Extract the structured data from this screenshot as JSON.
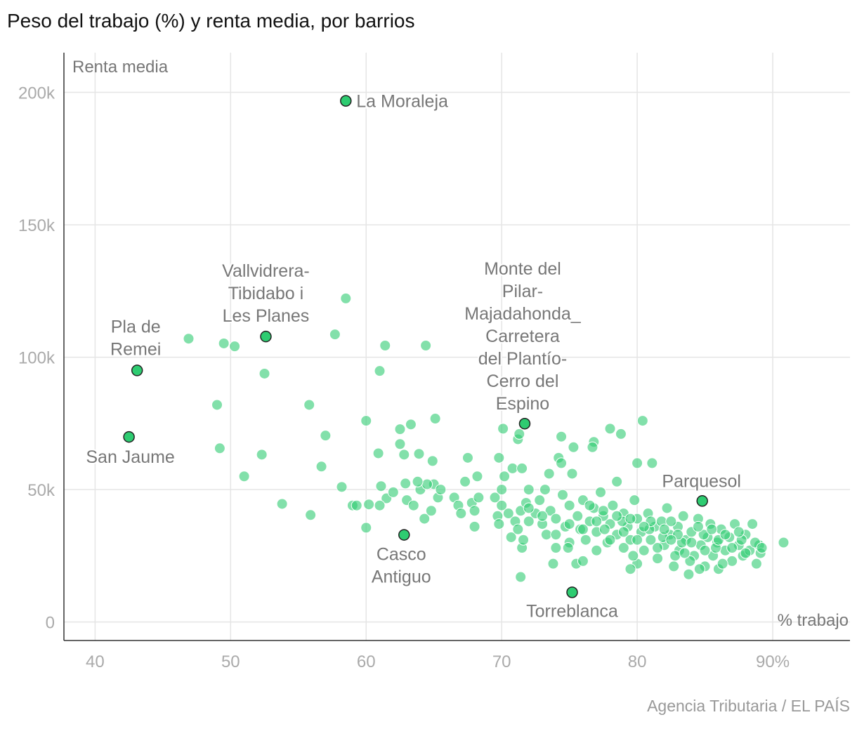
{
  "title": "Peso del trabajo (%) y renta media, por barrios",
  "source": "Agencia Tributaria / EL PAÍS",
  "colors": {
    "point": "#2ecc71",
    "highlight_stroke": "#222222",
    "grid": "#e5e5e5",
    "text": "#777777"
  },
  "chart_data": {
    "type": "scatter",
    "xlabel": "% trabajo",
    "ylabel": "Renta media",
    "xlim": [
      37.7,
      95.7
    ],
    "ylim": [
      -7000,
      215000
    ],
    "grid": true,
    "x_ticks": [
      40,
      50,
      60,
      70,
      80,
      90
    ],
    "x_tick_labels": [
      "40",
      "50",
      "60",
      "70",
      "80",
      "90%"
    ],
    "y_ticks": [
      0,
      50000,
      100000,
      150000,
      200000
    ],
    "y_tick_labels": [
      "0",
      "50k",
      "100k",
      "150k",
      "200k"
    ],
    "highlighted": [
      {
        "name": "La Moraleja",
        "lines": [
          "La Moraleja"
        ],
        "x": 58.5,
        "y": 196800
      },
      {
        "name": "Vallvidrera-Tibidabo i Les Planes",
        "lines": [
          "Vallvidrera-",
          "Tibidabo i",
          "Les Planes"
        ],
        "x": 52.6,
        "y": 107800
      },
      {
        "name": "Pla de Remei",
        "lines": [
          "Pla de",
          "Remei"
        ],
        "x": 43.1,
        "y": 95000
      },
      {
        "name": "San Jaume",
        "lines": [
          "San Jaume"
        ],
        "x": 42.5,
        "y": 69900
      },
      {
        "name": "Monte del Pilar-Majadahonda_Carretera del Plantío-Cerro del Espino",
        "lines": [
          "Monte del",
          "Pilar-",
          "Majadahonda_",
          "Carretera",
          "del Plantío-",
          "Cerro del",
          "Espino"
        ],
        "x": 71.7,
        "y": 74900
      },
      {
        "name": "Parquesol",
        "lines": [
          "Parquesol"
        ],
        "x": 84.8,
        "y": 45700
      },
      {
        "name": "Casco Antiguo",
        "lines": [
          "Casco",
          "Antiguo"
        ],
        "x": 62.8,
        "y": 32900
      },
      {
        "name": "Torreblanca",
        "lines": [
          "Torreblanca"
        ],
        "x": 75.2,
        "y": 11200
      }
    ],
    "points_k": [
      [
        46.9,
        107
      ],
      [
        49.5,
        105.2
      ],
      [
        50.3,
        104.1
      ],
      [
        52.5,
        93.8
      ],
      [
        49,
        82
      ],
      [
        49.2,
        65.6
      ],
      [
        51,
        55
      ],
      [
        52.3,
        63.2
      ],
      [
        53.8,
        44.6
      ],
      [
        55.9,
        40.4
      ],
      [
        55.8,
        82
      ],
      [
        57,
        70.4
      ],
      [
        56.7,
        58.7
      ],
      [
        58.2,
        51
      ],
      [
        57.7,
        108.6
      ],
      [
        58.5,
        122.2
      ],
      [
        61.4,
        104.4
      ],
      [
        64.4,
        104.4
      ],
      [
        61,
        94.8
      ],
      [
        60,
        76
      ],
      [
        63.3,
        74.6
      ],
      [
        65.1,
        76.8
      ],
      [
        62.5,
        72.8
      ],
      [
        62.5,
        67.2
      ],
      [
        60.9,
        63.7
      ],
      [
        62.8,
        63.2
      ],
      [
        63.9,
        63.5
      ],
      [
        64.9,
        60.8
      ],
      [
        60,
        35.6
      ],
      [
        60.2,
        44.4
      ],
      [
        61.1,
        51.3
      ],
      [
        59,
        44
      ],
      [
        61.5,
        46.7
      ],
      [
        62.9,
        52.3
      ],
      [
        62,
        49
      ],
      [
        63,
        46
      ],
      [
        63.5,
        44
      ],
      [
        64,
        50
      ],
      [
        64.3,
        39
      ],
      [
        64.8,
        42
      ],
      [
        65,
        52
      ],
      [
        65.3,
        47
      ],
      [
        65.5,
        50
      ],
      [
        61,
        44
      ],
      [
        59.3,
        44
      ],
      [
        64.5,
        52
      ],
      [
        63.8,
        53
      ],
      [
        66.5,
        47
      ],
      [
        66.8,
        44
      ],
      [
        67,
        41
      ],
      [
        67.3,
        53
      ],
      [
        67.5,
        62
      ],
      [
        67.8,
        45
      ],
      [
        68,
        42
      ],
      [
        68.2,
        55
      ],
      [
        68.3,
        47
      ],
      [
        68,
        36
      ],
      [
        69.5,
        47
      ],
      [
        69.7,
        40
      ],
      [
        69.8,
        37
      ],
      [
        70,
        50
      ],
      [
        70,
        44
      ],
      [
        70.2,
        55
      ],
      [
        69.8,
        62
      ],
      [
        70.5,
        41
      ],
      [
        70.7,
        32
      ],
      [
        70.8,
        58
      ],
      [
        71,
        38
      ],
      [
        71.2,
        35
      ],
      [
        71.4,
        42
      ],
      [
        71.5,
        28
      ],
      [
        71.6,
        31
      ],
      [
        71.8,
        45
      ],
      [
        72,
        50
      ],
      [
        72,
        38
      ],
      [
        71.5,
        58
      ],
      [
        71.2,
        69
      ],
      [
        70.1,
        73
      ],
      [
        71.3,
        71
      ],
      [
        71.4,
        17
      ],
      [
        72.5,
        41
      ],
      [
        72.8,
        46
      ],
      [
        73,
        37
      ],
      [
        73.2,
        50
      ],
      [
        73.5,
        56
      ],
      [
        73.3,
        33
      ],
      [
        73.6,
        42
      ],
      [
        73.8,
        22
      ],
      [
        74,
        28
      ],
      [
        74,
        39
      ],
      [
        74.2,
        62
      ],
      [
        74.4,
        60
      ],
      [
        74.4,
        70
      ],
      [
        74.5,
        48
      ],
      [
        74.7,
        36
      ],
      [
        75,
        30
      ],
      [
        75,
        44
      ],
      [
        75.2,
        56
      ],
      [
        75.3,
        66
      ],
      [
        75.5,
        22
      ],
      [
        75.6,
        40
      ],
      [
        75.8,
        35
      ],
      [
        76,
        46
      ],
      [
        76.2,
        31
      ],
      [
        76.5,
        38
      ],
      [
        76.8,
        43
      ],
      [
        76.8,
        68
      ],
      [
        76.7,
        66
      ],
      [
        77,
        27
      ],
      [
        77,
        34
      ],
      [
        77.3,
        49
      ],
      [
        77.5,
        40
      ],
      [
        77.8,
        30
      ],
      [
        78,
        37
      ],
      [
        78,
        73
      ],
      [
        78.2,
        44
      ],
      [
        78.5,
        53
      ],
      [
        78.5,
        33
      ],
      [
        78.8,
        71
      ],
      [
        79,
        28
      ],
      [
        79,
        41
      ],
      [
        79.3,
        36
      ],
      [
        79.5,
        31
      ],
      [
        79.8,
        46
      ],
      [
        80,
        22
      ],
      [
        80,
        39
      ],
      [
        80,
        60
      ],
      [
        80.3,
        34
      ],
      [
        80.4,
        76
      ],
      [
        80.5,
        27
      ],
      [
        80.8,
        41
      ],
      [
        81,
        31
      ],
      [
        81.1,
        60
      ],
      [
        81.3,
        36
      ],
      [
        81.5,
        24
      ],
      [
        81.8,
        38
      ],
      [
        82,
        29
      ],
      [
        82.2,
        43
      ],
      [
        82.4,
        33
      ],
      [
        82.7,
        21
      ],
      [
        83,
        36
      ],
      [
        83.1,
        27
      ],
      [
        83.4,
        40
      ],
      [
        83.6,
        31
      ],
      [
        83.8,
        18
      ],
      [
        84,
        34
      ],
      [
        84.2,
        25
      ],
      [
        84.5,
        39
      ],
      [
        84.7,
        29
      ],
      [
        85,
        21
      ],
      [
        85.2,
        32
      ],
      [
        85.4,
        37
      ],
      [
        85.6,
        25
      ],
      [
        85.9,
        30
      ],
      [
        86,
        20
      ],
      [
        86.2,
        35
      ],
      [
        86.5,
        27
      ],
      [
        86.8,
        32
      ],
      [
        87,
        23
      ],
      [
        87.2,
        37
      ],
      [
        87.5,
        29
      ],
      [
        87.8,
        25
      ],
      [
        88,
        33
      ],
      [
        88.3,
        27
      ],
      [
        88.5,
        37
      ],
      [
        88.8,
        22
      ],
      [
        89,
        29
      ],
      [
        89.1,
        26
      ],
      [
        90.8,
        30
      ],
      [
        79.5,
        20
      ],
      [
        82.8,
        25
      ],
      [
        84.6,
        20
      ],
      [
        76,
        23
      ],
      [
        74.9,
        28
      ],
      [
        79.7,
        25
      ],
      [
        81.9,
        32
      ],
      [
        83.3,
        30
      ],
      [
        85.8,
        28
      ],
      [
        84.9,
        33
      ],
      [
        86.3,
        22
      ],
      [
        87.7,
        31
      ],
      [
        80.9,
        35
      ],
      [
        78.9,
        38
      ],
      [
        77.6,
        35
      ],
      [
        82.5,
        38
      ],
      [
        83.9,
        23
      ],
      [
        85.5,
        35
      ],
      [
        81,
        38
      ],
      [
        82,
        35
      ],
      [
        83,
        33
      ],
      [
        84,
        30
      ],
      [
        85,
        27
      ],
      [
        86,
        31
      ],
      [
        87,
        28
      ],
      [
        88,
        26
      ],
      [
        80,
        31
      ],
      [
        79,
        34
      ],
      [
        78,
        31
      ],
      [
        77,
        38
      ],
      [
        76,
        35
      ],
      [
        75,
        37
      ],
      [
        74,
        33
      ],
      [
        73,
        40
      ],
      [
        72,
        43
      ],
      [
        81.5,
        28
      ],
      [
        82.5,
        31
      ],
      [
        83.5,
        26
      ],
      [
        84.5,
        36
      ],
      [
        86.5,
        33
      ],
      [
        87.5,
        34
      ],
      [
        88.7,
        30
      ],
      [
        89.2,
        28
      ],
      [
        80.5,
        36
      ],
      [
        79.5,
        39
      ],
      [
        78.5,
        40
      ],
      [
        77.5,
        42
      ],
      [
        76.5,
        44
      ]
    ]
  }
}
